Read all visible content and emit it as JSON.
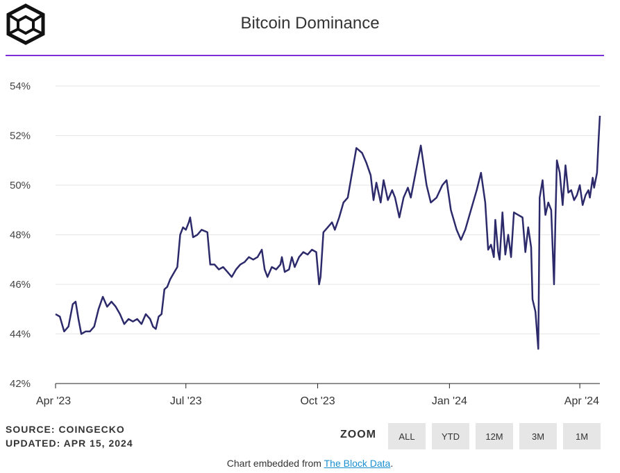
{
  "header": {
    "title": "Bitcoin Dominance",
    "logo_icon": "the-block-cube-logo-icon",
    "accent_color": "#7b2ed6"
  },
  "chart_data": {
    "type": "line",
    "title": "Bitcoin Dominance",
    "xlabel": "",
    "ylabel": "",
    "x_ticks": [
      "Apr '23",
      "Jul '23",
      "Oct '23",
      "Jan '24",
      "Apr '24"
    ],
    "y_ticks": [
      "42%",
      "44%",
      "46%",
      "48%",
      "50%",
      "52%",
      "54%"
    ],
    "ylim": [
      42,
      54.5
    ],
    "xlim": [
      "2023-04-01",
      "2024-04-15"
    ],
    "grid": true,
    "line_color": "#2c2a6b",
    "series": [
      {
        "name": "",
        "points": [
          [
            "2023-04-01",
            44.8
          ],
          [
            "2023-04-04",
            44.7
          ],
          [
            "2023-04-07",
            44.1
          ],
          [
            "2023-04-10",
            44.3
          ],
          [
            "2023-04-13",
            45.2
          ],
          [
            "2023-04-15",
            45.3
          ],
          [
            "2023-04-17",
            44.6
          ],
          [
            "2023-04-19",
            44.0
          ],
          [
            "2023-04-22",
            44.1
          ],
          [
            "2023-04-25",
            44.1
          ],
          [
            "2023-04-28",
            44.3
          ],
          [
            "2023-05-01",
            45.0
          ],
          [
            "2023-05-04",
            45.5
          ],
          [
            "2023-05-07",
            45.1
          ],
          [
            "2023-05-10",
            45.3
          ],
          [
            "2023-05-13",
            45.1
          ],
          [
            "2023-05-16",
            44.8
          ],
          [
            "2023-05-19",
            44.4
          ],
          [
            "2023-05-22",
            44.6
          ],
          [
            "2023-05-25",
            44.5
          ],
          [
            "2023-05-28",
            44.6
          ],
          [
            "2023-05-31",
            44.4
          ],
          [
            "2023-06-03",
            44.8
          ],
          [
            "2023-06-06",
            44.6
          ],
          [
            "2023-06-08",
            44.3
          ],
          [
            "2023-06-10",
            44.2
          ],
          [
            "2023-06-12",
            44.7
          ],
          [
            "2023-06-14",
            44.8
          ],
          [
            "2023-06-16",
            45.8
          ],
          [
            "2023-06-18",
            45.9
          ],
          [
            "2023-06-20",
            46.2
          ],
          [
            "2023-06-23",
            46.5
          ],
          [
            "2023-06-25",
            46.7
          ],
          [
            "2023-06-27",
            48.0
          ],
          [
            "2023-06-29",
            48.3
          ],
          [
            "2023-07-01",
            48.2
          ],
          [
            "2023-07-03",
            48.5
          ],
          [
            "2023-07-04",
            48.7
          ],
          [
            "2023-07-06",
            47.9
          ],
          [
            "2023-07-09",
            48.0
          ],
          [
            "2023-07-12",
            48.2
          ],
          [
            "2023-07-16",
            48.1
          ],
          [
            "2023-07-18",
            46.8
          ],
          [
            "2023-07-21",
            46.8
          ],
          [
            "2023-07-24",
            46.6
          ],
          [
            "2023-07-27",
            46.7
          ],
          [
            "2023-07-30",
            46.5
          ],
          [
            "2023-08-02",
            46.3
          ],
          [
            "2023-08-05",
            46.6
          ],
          [
            "2023-08-08",
            46.8
          ],
          [
            "2023-08-11",
            46.9
          ],
          [
            "2023-08-14",
            47.1
          ],
          [
            "2023-08-17",
            47.0
          ],
          [
            "2023-08-20",
            47.1
          ],
          [
            "2023-08-23",
            47.4
          ],
          [
            "2023-08-25",
            46.6
          ],
          [
            "2023-08-27",
            46.3
          ],
          [
            "2023-08-30",
            46.7
          ],
          [
            "2023-09-02",
            46.6
          ],
          [
            "2023-09-05",
            46.8
          ],
          [
            "2023-09-06",
            47.1
          ],
          [
            "2023-09-08",
            46.5
          ],
          [
            "2023-09-11",
            46.6
          ],
          [
            "2023-09-13",
            47.1
          ],
          [
            "2023-09-15",
            46.7
          ],
          [
            "2023-09-18",
            47.1
          ],
          [
            "2023-09-21",
            47.3
          ],
          [
            "2023-09-24",
            47.2
          ],
          [
            "2023-09-27",
            47.4
          ],
          [
            "2023-09-30",
            47.3
          ],
          [
            "2023-10-02",
            46.0
          ],
          [
            "2023-10-03",
            46.3
          ],
          [
            "2023-10-05",
            48.1
          ],
          [
            "2023-10-08",
            48.3
          ],
          [
            "2023-10-11",
            48.5
          ],
          [
            "2023-10-13",
            48.2
          ],
          [
            "2023-10-16",
            48.7
          ],
          [
            "2023-10-19",
            49.3
          ],
          [
            "2023-10-22",
            49.5
          ],
          [
            "2023-10-25",
            50.5
          ],
          [
            "2023-10-28",
            51.5
          ],
          [
            "2023-11-01",
            51.3
          ],
          [
            "2023-11-04",
            50.9
          ],
          [
            "2023-11-07",
            50.4
          ],
          [
            "2023-11-09",
            49.4
          ],
          [
            "2023-11-11",
            50.1
          ],
          [
            "2023-11-14",
            49.3
          ],
          [
            "2023-11-16",
            50.2
          ],
          [
            "2023-11-19",
            49.4
          ],
          [
            "2023-11-22",
            49.8
          ],
          [
            "2023-11-24",
            49.5
          ],
          [
            "2023-11-27",
            48.7
          ],
          [
            "2023-11-30",
            49.5
          ],
          [
            "2023-12-03",
            49.9
          ],
          [
            "2023-12-05",
            49.5
          ],
          [
            "2023-12-08",
            50.4
          ],
          [
            "2023-12-12",
            51.6
          ],
          [
            "2023-12-16",
            50.0
          ],
          [
            "2023-12-19",
            49.3
          ],
          [
            "2023-12-23",
            49.5
          ],
          [
            "2023-12-27",
            50.0
          ],
          [
            "2023-12-30",
            50.2
          ],
          [
            "2024-01-02",
            49.0
          ],
          [
            "2024-01-06",
            48.2
          ],
          [
            "2024-01-09",
            47.8
          ],
          [
            "2024-01-12",
            48.2
          ],
          [
            "2024-01-16",
            49.0
          ],
          [
            "2024-01-20",
            49.8
          ],
          [
            "2024-01-23",
            50.5
          ],
          [
            "2024-01-26",
            49.3
          ],
          [
            "2024-01-28",
            47.4
          ],
          [
            "2024-01-30",
            47.6
          ],
          [
            "2024-02-01",
            47.1
          ],
          [
            "2024-02-02",
            48.6
          ],
          [
            "2024-02-04",
            47.3
          ],
          [
            "2024-02-05",
            47.0
          ],
          [
            "2024-02-07",
            48.9
          ],
          [
            "2024-02-09",
            47.2
          ],
          [
            "2024-02-11",
            48.0
          ],
          [
            "2024-02-13",
            47.1
          ],
          [
            "2024-02-15",
            48.9
          ],
          [
            "2024-02-18",
            48.8
          ],
          [
            "2024-02-21",
            48.7
          ],
          [
            "2024-02-23",
            47.3
          ],
          [
            "2024-02-25",
            48.3
          ],
          [
            "2024-02-27",
            47.5
          ],
          [
            "2024-02-28",
            45.4
          ],
          [
            "2024-03-01",
            44.9
          ],
          [
            "2024-03-03",
            43.4
          ],
          [
            "2024-03-04",
            49.5
          ],
          [
            "2024-03-06",
            50.2
          ],
          [
            "2024-03-08",
            48.8
          ],
          [
            "2024-03-10",
            49.3
          ],
          [
            "2024-03-12",
            49.0
          ],
          [
            "2024-03-14",
            46.0
          ],
          [
            "2024-03-15",
            48.6
          ],
          [
            "2024-03-16",
            51.0
          ],
          [
            "2024-03-18",
            50.5
          ],
          [
            "2024-03-20",
            49.2
          ],
          [
            "2024-03-22",
            50.8
          ],
          [
            "2024-03-24",
            49.7
          ],
          [
            "2024-03-26",
            49.8
          ],
          [
            "2024-03-28",
            49.4
          ],
          [
            "2024-03-30",
            49.6
          ],
          [
            "2024-04-01",
            50.0
          ],
          [
            "2024-04-03",
            49.2
          ],
          [
            "2024-04-05",
            49.6
          ],
          [
            "2024-04-07",
            49.8
          ],
          [
            "2024-04-08",
            49.5
          ],
          [
            "2024-04-10",
            50.3
          ],
          [
            "2024-04-11",
            49.9
          ],
          [
            "2024-04-13",
            50.5
          ],
          [
            "2024-04-14",
            51.7
          ],
          [
            "2024-04-15",
            52.8
          ]
        ]
      }
    ]
  },
  "footer": {
    "source": "SOURCE: COINGECKO",
    "updated": "UPDATED: APR 15, 2024",
    "zoom_label": "ZOOM",
    "zoom_buttons": [
      "ALL",
      "YTD",
      "12M",
      "3M",
      "1M"
    ],
    "embed_prefix": "Chart embedded from ",
    "embed_link": "The Block Data",
    "embed_suffix": "."
  }
}
